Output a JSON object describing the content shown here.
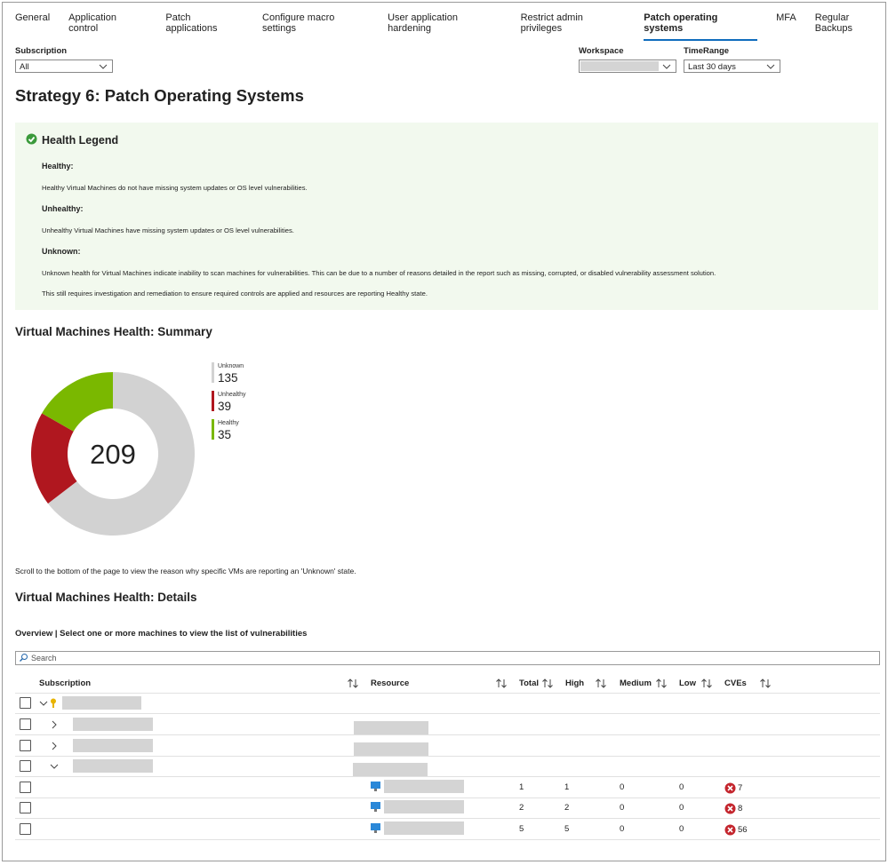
{
  "tabs": [
    "General",
    "Application control",
    "Patch applications",
    "Configure macro settings",
    "User application hardening",
    "Restrict admin privileges",
    "Patch operating systems",
    "MFA",
    "Regular Backups"
  ],
  "active_tab": 6,
  "filters": [
    {
      "label": "Subscription",
      "value": "All"
    },
    {
      "label": "Workspace"
    },
    {
      "label": "TimeRange",
      "value": "Last 30 days"
    }
  ],
  "title": "Strategy 6: Patch Operating Systems",
  "health_legend": {
    "title": "Health Legend",
    "items": [
      {
        "heading": "Healthy:",
        "text": "Healthy Virtual Machines do not have missing system updates or OS level vulnerabilities."
      },
      {
        "heading": "Unhealthy:",
        "text": "Unhealthy Virtual Machines have missing system updates or OS level vulnerabilities."
      },
      {
        "heading": "Unknown:",
        "text": "Unknown health for Virtual Machines indicate inability to scan machines for vulnerabilities. This can be due to a number of reasons detailed in the report such as missing, corrupted, or disabled vulnerability assessment solution."
      }
    ],
    "note": "This still requires investigation and remediation to ensure required controls are applied and resources are reporting Healthy state."
  },
  "chart_data": {
    "type": "donut",
    "title": "Virtual Machines Health: Summary",
    "categories": [
      "Unknown",
      "Unhealthy",
      "Healthy"
    ],
    "values": [
      135,
      39,
      35
    ],
    "colors": [
      "#d2d2d2",
      "#b0171f",
      "#7ab800"
    ],
    "total": 209
  },
  "scroll_note": "Scroll to the bottom of the page to view the reason why specific VMs are reporting an 'Unknown' state.",
  "details": {
    "title": "Virtual Machines Health: Details",
    "subtitle": "Overview | Select one or more machines to view the list of vulnerabilities",
    "search_placeholder": "Search",
    "columns": [
      "Subscription",
      "Resource",
      "Total",
      "High",
      "Medium",
      "Low",
      "CVEs"
    ],
    "rows": [
      [
        1,
        1,
        0,
        0,
        7
      ],
      [
        2,
        2,
        0,
        0,
        8
      ],
      [
        5,
        5,
        0,
        0,
        56
      ]
    ]
  }
}
